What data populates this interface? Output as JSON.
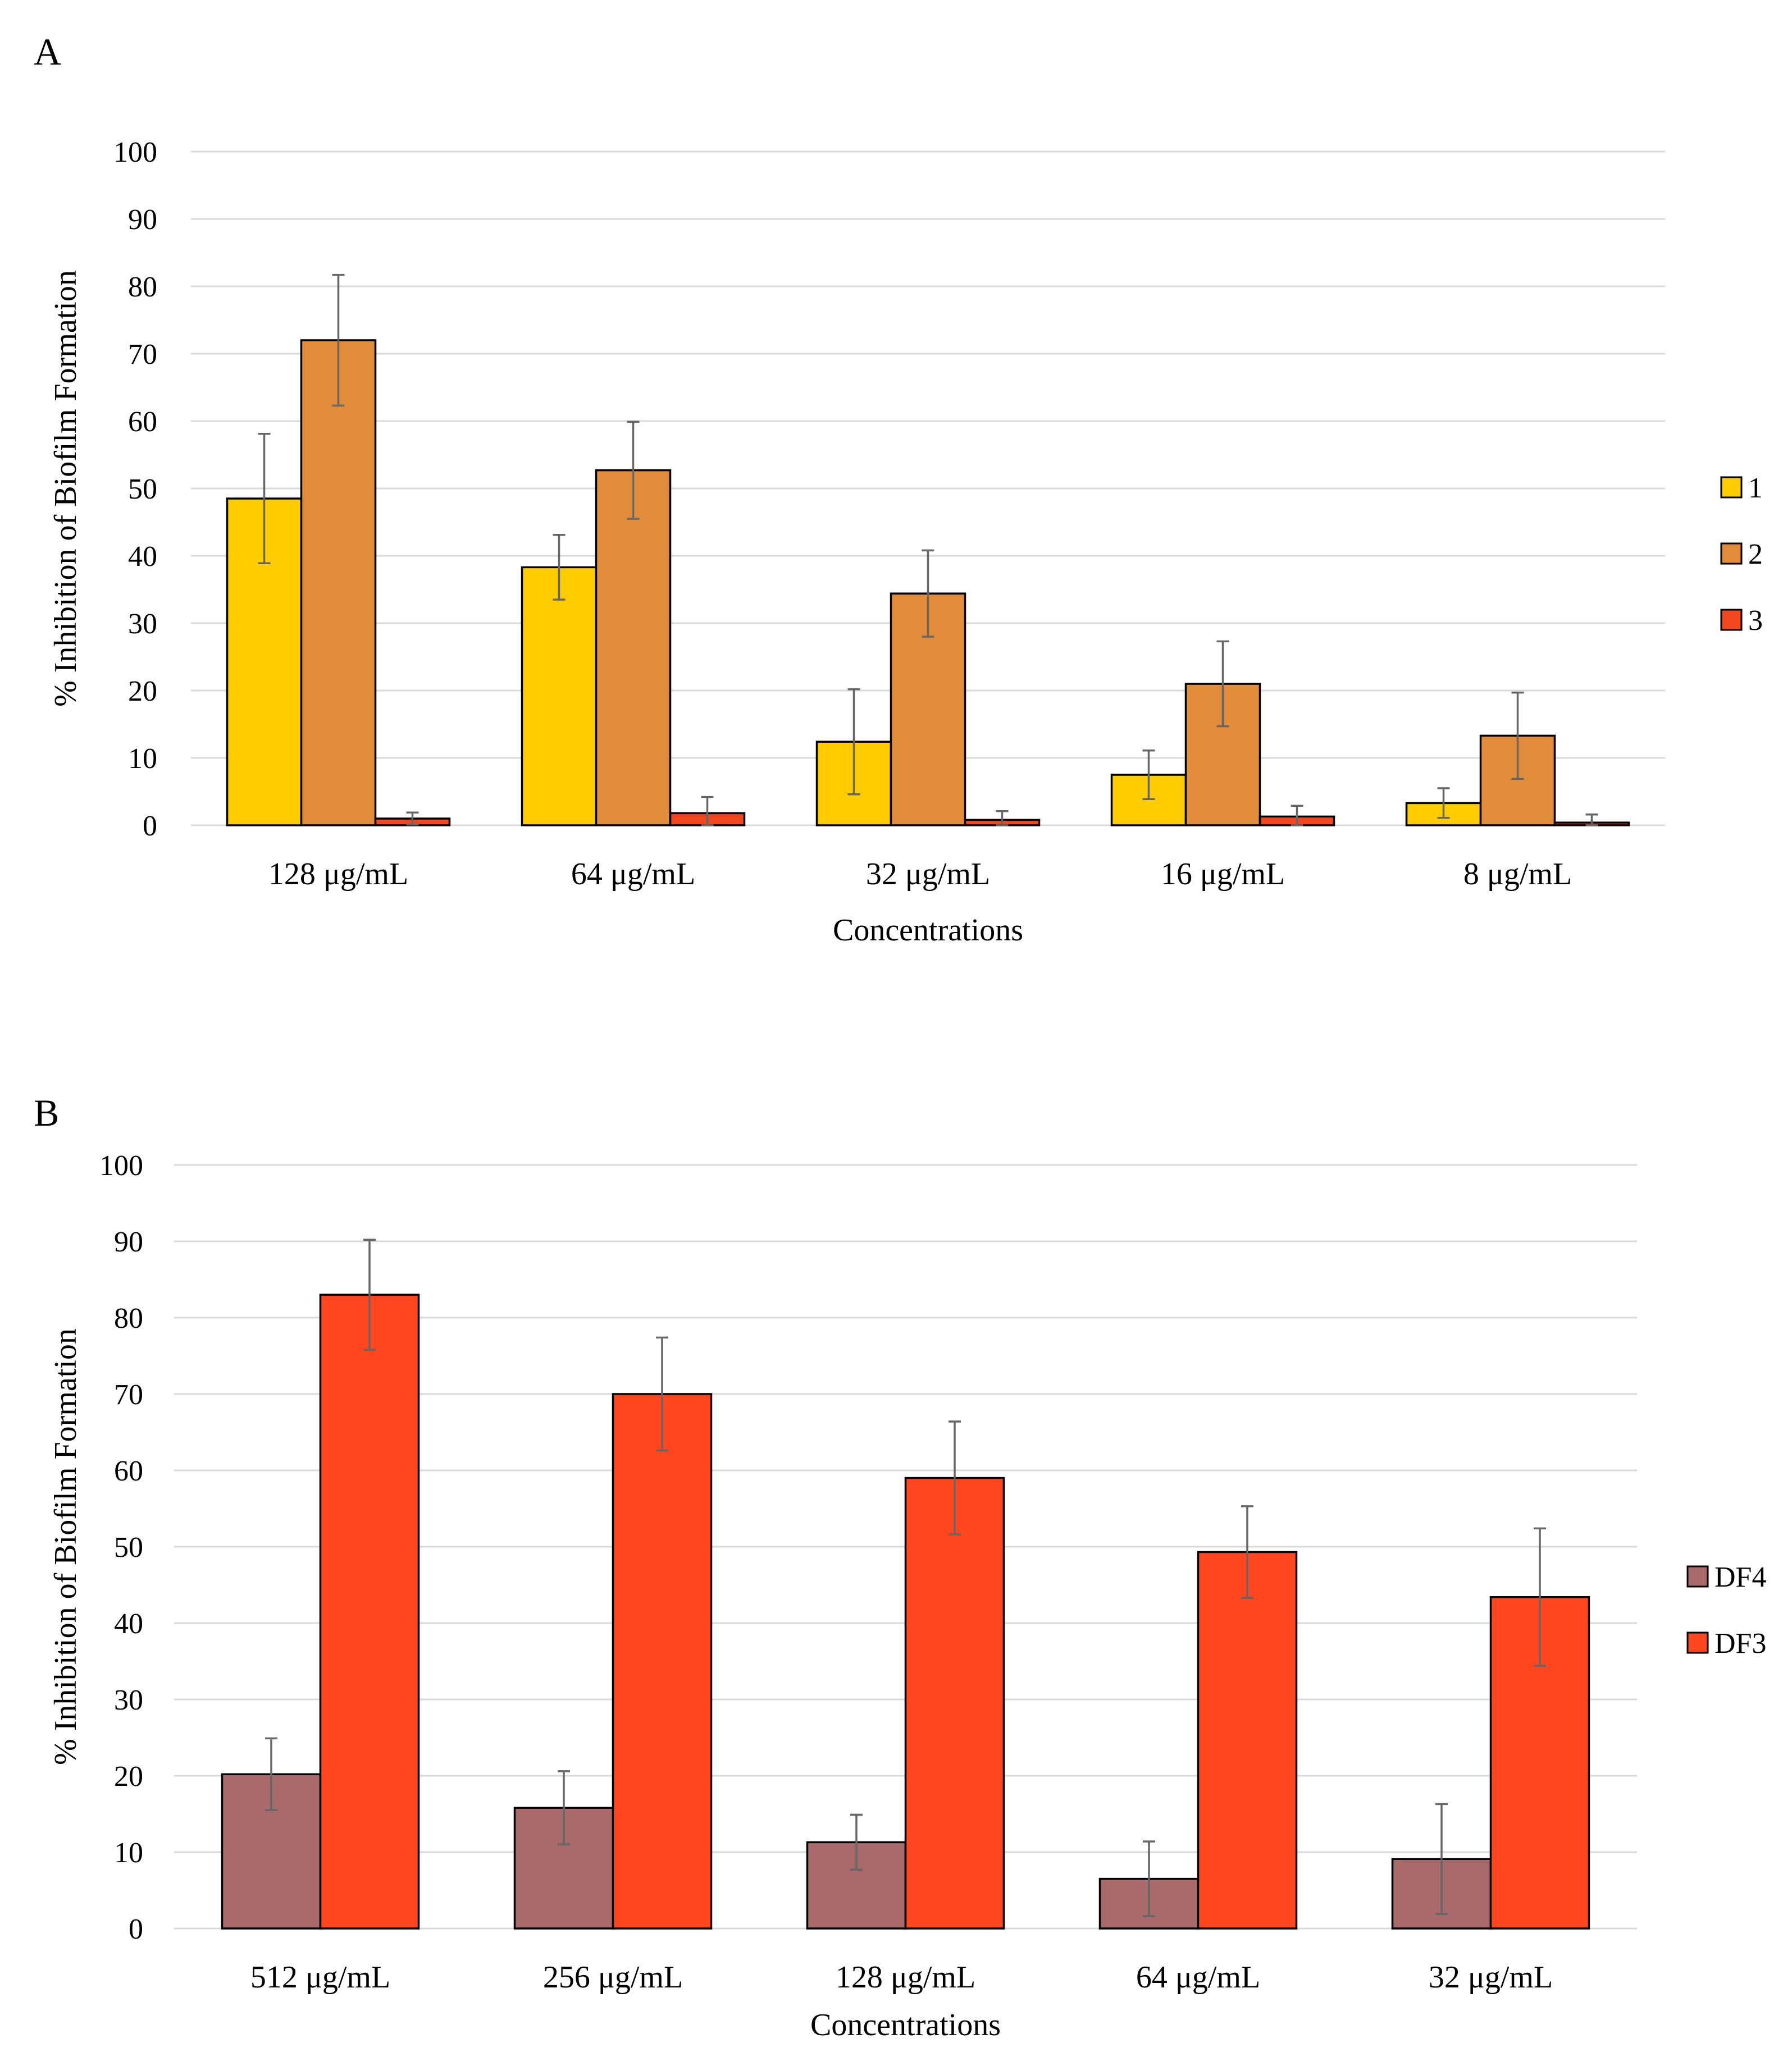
{
  "panels": [
    {
      "label": "A"
    },
    {
      "label": "B"
    }
  ],
  "chart_data": [
    {
      "type": "bar",
      "panel": "A",
      "title": "",
      "xlabel": "Concentrations",
      "ylabel": "% Inhibition of Biofilm Formation",
      "ylim": [
        0,
        100
      ],
      "yticks": [
        0,
        10,
        20,
        30,
        40,
        50,
        60,
        70,
        80,
        90,
        100
      ],
      "grid": true,
      "legend_position": "right",
      "categories": [
        "128 μg/mL",
        "64 μg/mL",
        "32 μg/mL",
        "16 μg/mL",
        "8 μg/mL"
      ],
      "series": [
        {
          "name": "1",
          "color": "#ffcc00",
          "values": [
            48.5,
            38.3,
            12.4,
            7.5,
            3.3
          ],
          "errors": [
            9.6,
            4.8,
            7.8,
            3.6,
            2.2
          ]
        },
        {
          "name": "2",
          "color": "#e08c3a",
          "values": [
            72.0,
            52.7,
            34.4,
            21.0,
            13.3
          ],
          "errors": [
            9.7,
            7.2,
            6.4,
            6.3,
            6.4
          ]
        },
        {
          "name": "3",
          "color": "#f2471e",
          "values": [
            1.0,
            1.8,
            0.8,
            1.3,
            0.4
          ],
          "errors": [
            0.9,
            2.4,
            1.3,
            1.6,
            1.2
          ]
        }
      ]
    },
    {
      "type": "bar",
      "panel": "B",
      "title": "",
      "xlabel": "Concentrations",
      "ylabel": "% Inhibition of Biofilm Formation",
      "ylim": [
        0,
        100
      ],
      "yticks": [
        0,
        10,
        20,
        30,
        40,
        50,
        60,
        70,
        80,
        90,
        100
      ],
      "grid": true,
      "legend_position": "right",
      "categories": [
        "512 μg/mL",
        "256 μg/mL",
        "128 μg/mL",
        "64 μg/mL",
        "32 μg/mL"
      ],
      "series": [
        {
          "name": "DF4",
          "color": "#a86a6a",
          "values": [
            20.2,
            15.8,
            11.3,
            6.5,
            9.1
          ],
          "errors": [
            4.7,
            4.8,
            3.6,
            4.9,
            7.2
          ]
        },
        {
          "name": "DF3",
          "color": "#ff461e",
          "values": [
            83.0,
            70.0,
            59.0,
            49.3,
            43.4
          ],
          "errors": [
            7.2,
            7.4,
            7.4,
            6.0,
            9.0
          ]
        }
      ]
    }
  ]
}
